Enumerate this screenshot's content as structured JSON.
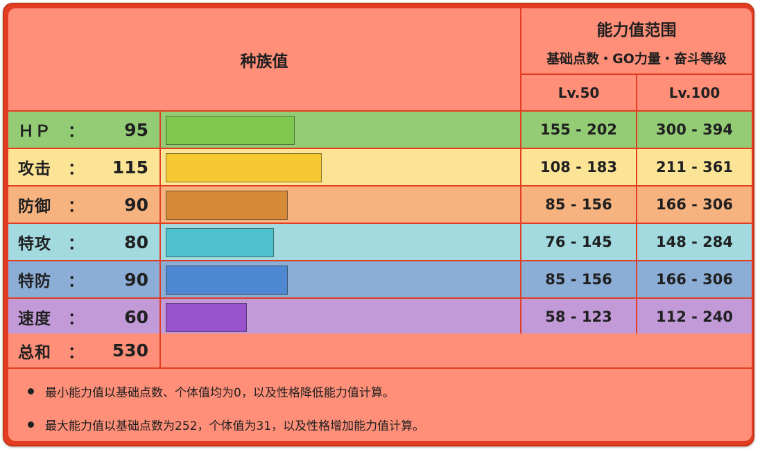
{
  "header": {
    "species_title": "种族值",
    "range_title": "能力值范围",
    "range_subtitle": "基础点数・GO力量・奋斗等级",
    "lv50": "Lv.50",
    "lv100": "Lv.100"
  },
  "chart_data": {
    "type": "bar",
    "orientation": "horizontal",
    "title": "种族值",
    "xlim": [
      0,
      255
    ],
    "categories": [
      "ＨＰ",
      "攻击",
      "防御",
      "特攻",
      "特防",
      "速度"
    ],
    "values": [
      95,
      115,
      90,
      80,
      90,
      60
    ],
    "total_label": "总和",
    "total": 530
  },
  "rows": [
    {
      "label": "ＨＰ",
      "colon": "：",
      "value": "95",
      "lv50": "155 - 202",
      "lv100": "300 - 394",
      "bg": "#94cc76",
      "bar": "#7ec850"
    },
    {
      "label": "攻击",
      "colon": "：",
      "value": "115",
      "lv50": "108 - 183",
      "lv100": "211 - 361",
      "bg": "#fbe495",
      "bar": "#f6c832"
    },
    {
      "label": "防御",
      "colon": "：",
      "value": "90",
      "lv50": "85 - 156",
      "lv100": "166 - 306",
      "bg": "#f6b380",
      "bar": "#d68a38"
    },
    {
      "label": "特攻",
      "colon": "：",
      "value": "80",
      "lv50": "76 - 145",
      "lv100": "148 - 284",
      "bg": "#a2dae0",
      "bar": "#4ec3cf"
    },
    {
      "label": "特防",
      "colon": "：",
      "value": "90",
      "lv50": "85 - 156",
      "lv100": "166 - 306",
      "bg": "#8caed6",
      "bar": "#4e88d0"
    },
    {
      "label": "速度",
      "colon": "：",
      "value": "60",
      "lv50": "58 - 123",
      "lv100": "112 - 240",
      "bg": "#c29ad8",
      "bar": "#9752cc"
    }
  ],
  "total_row": {
    "label": "总和",
    "colon": "：",
    "value": "530"
  },
  "notes": [
    "最小能力值以基础点数、个体值均为0，以及性格降低能力值计算。",
    "最大能力值以基础点数为252，个体值为31，以及性格增加能力值计算。"
  ],
  "colors": {
    "border": "#e23d22",
    "panel": "#ff8f78"
  }
}
